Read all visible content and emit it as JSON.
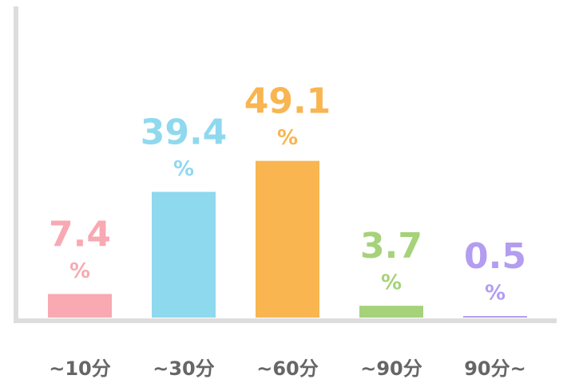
{
  "chart_data": {
    "type": "bar",
    "categories": [
      "~10分",
      "~30分",
      "~60分",
      "~90分",
      "90分~"
    ],
    "values": [
      7.4,
      39.4,
      49.1,
      3.7,
      0.5
    ],
    "unit_label": "%",
    "colors": [
      "#f8a9b2",
      "#8fd9ee",
      "#f8b550",
      "#a6d27a",
      "#b39df0"
    ],
    "ylim": [
      0,
      90
    ]
  }
}
